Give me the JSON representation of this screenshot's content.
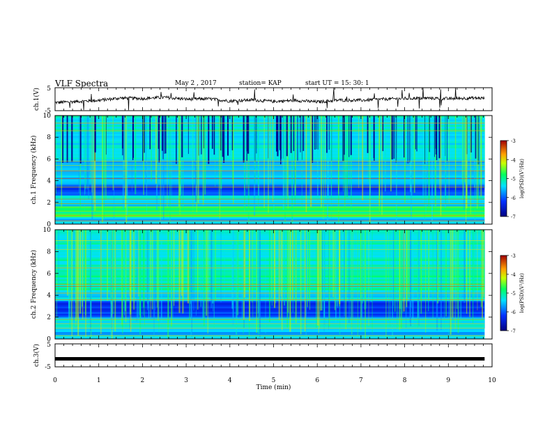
{
  "header": {
    "title": "VLF Spectra",
    "date": "May 2 , 2017",
    "station": "station= KAP",
    "start": "start UT = 15: 30: 1"
  },
  "chart_data": [
    {
      "type": "line",
      "panel": "ch1-voltage",
      "ylabel": "ch.1(V)",
      "ylim": [
        -5,
        5
      ],
      "yticks": [
        "5",
        "-5"
      ],
      "x": [
        0,
        0.5,
        1.0,
        1.5,
        2.0,
        2.5,
        3.0,
        3.5,
        4.0,
        4.5,
        5.0,
        5.5,
        6.0,
        6.5,
        7.0,
        7.5,
        8.0,
        8.5,
        9.0,
        9.5,
        9.83
      ],
      "values": [
        -1.5,
        -1.0,
        -0.5,
        0.5,
        0.3,
        0.8,
        0.0,
        0.2,
        -0.8,
        -0.3,
        -1.0,
        -0.5,
        -1.2,
        -0.4,
        -0.5,
        0.0,
        0.3,
        0.5,
        0.2,
        0.5,
        0.4
      ],
      "color": "#000000"
    },
    {
      "type": "heatmap",
      "panel": "ch1-spectrogram",
      "ylabel": "ch.1 Frequency (kHz)",
      "ylim": [
        0,
        10
      ],
      "yticks": [
        "0",
        "2",
        "4",
        "6",
        "8",
        "10"
      ],
      "colorbar": {
        "label": "log(PSD)(V²/Hz)",
        "range": [
          -7,
          -3
        ],
        "ticks": [
          "-3",
          "-4",
          "-5",
          "-6",
          "-7"
        ]
      }
    },
    {
      "type": "heatmap",
      "panel": "ch2-spectrogram",
      "ylabel": "ch.2 Frequency (kHz)",
      "ylim": [
        0,
        10
      ],
      "yticks": [
        "0",
        "2",
        "4",
        "6",
        "8",
        "10"
      ],
      "colorbar": {
        "label": "log(PSD)(V²/Hz)",
        "range": [
          -7,
          -3
        ],
        "ticks": [
          "-3",
          "-4",
          "-5",
          "-6",
          "-7"
        ]
      }
    },
    {
      "type": "line",
      "panel": "ch3-voltage",
      "ylabel": "ch.3(V)",
      "ylim": [
        -5,
        5
      ],
      "yticks": [
        "5",
        "-5"
      ],
      "x": [
        0,
        9.83
      ],
      "values": [
        -1.5,
        -1.5
      ],
      "color": "#000000"
    }
  ],
  "xaxis": {
    "label": "Time (min)",
    "ticks": [
      "0",
      "1",
      "2",
      "3",
      "4",
      "5",
      "6",
      "7",
      "8",
      "9",
      "10"
    ],
    "xlim": [
      0,
      10
    ]
  }
}
